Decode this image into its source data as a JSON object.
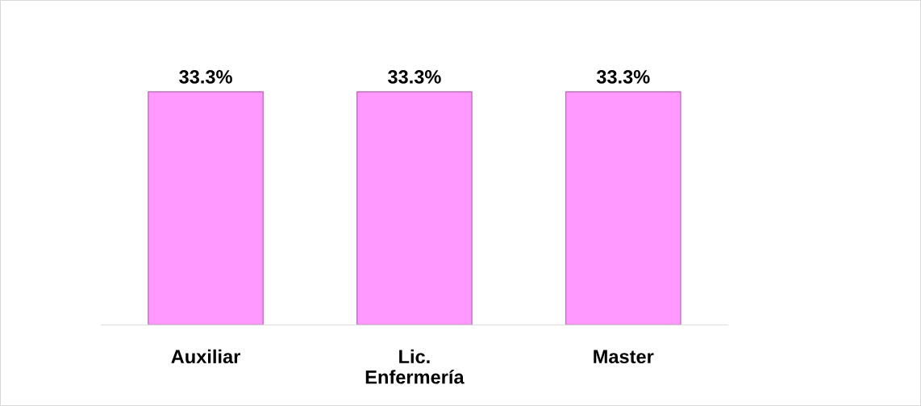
{
  "chart_data": {
    "type": "bar",
    "categories": [
      "Auxiliar",
      "Lic. Enfermería",
      "Master"
    ],
    "values": [
      33.3,
      33.3,
      33.3
    ],
    "color": "#ff99ff",
    "data_labels": true,
    "value_labels": [
      "33.3%",
      "33.3%",
      "33.3%"
    ],
    "grid": false,
    "legend": false
  }
}
